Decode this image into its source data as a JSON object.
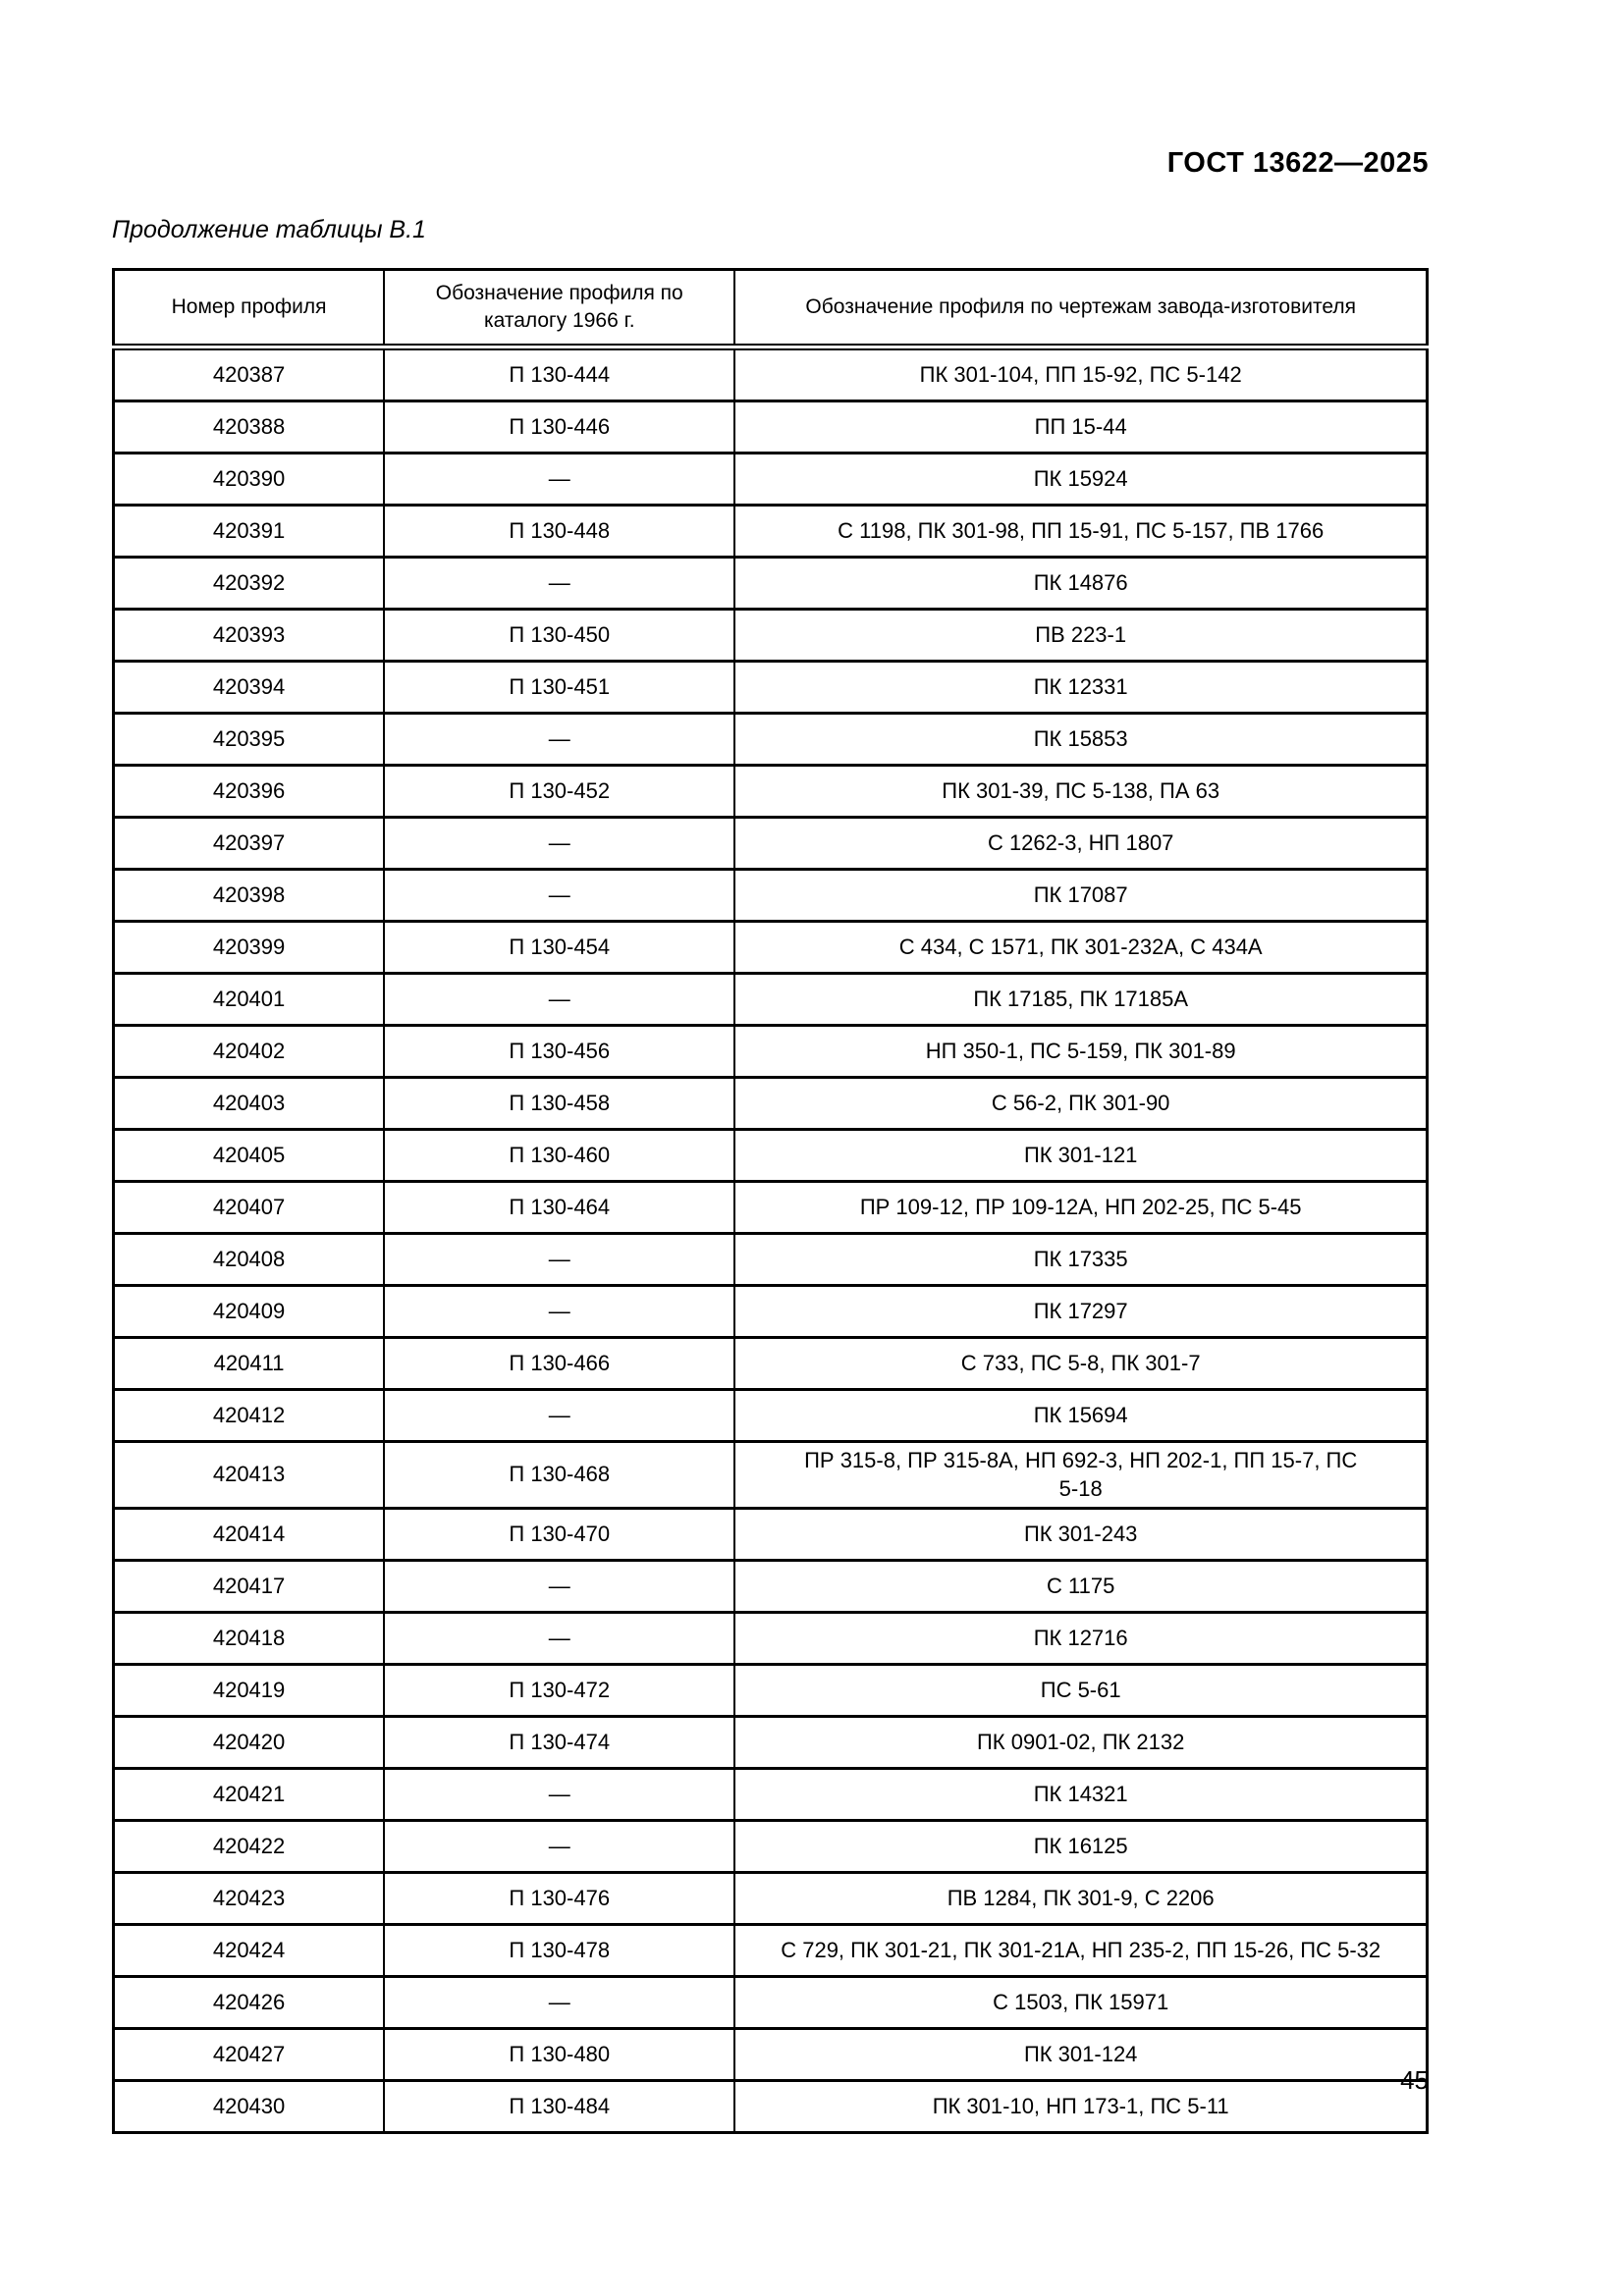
{
  "page": {
    "doc_code": "ГОСТ 13622—2025",
    "table_caption": "Продолжение таблицы В.1",
    "page_number": "45"
  },
  "table": {
    "headers": [
      "Номер профиля",
      "Обозначение профиля по каталогу 1966 г.",
      "Обозначение профиля по чертежам завода-изготовителя"
    ],
    "rows": [
      [
        "420387",
        "П 130-444",
        "ПК 301-104, ПП 15-92, ПС 5-142"
      ],
      [
        "420388",
        "П 130-446",
        "ПП 15-44"
      ],
      [
        "420390",
        "—",
        "ПК 15924"
      ],
      [
        "420391",
        "П 130-448",
        "С 1198, ПК 301-98, ПП 15-91, ПС 5-157, ПВ 1766"
      ],
      [
        "420392",
        "—",
        "ПК 14876"
      ],
      [
        "420393",
        "П 130-450",
        "ПВ 223-1"
      ],
      [
        "420394",
        "П 130-451",
        "ПК 12331"
      ],
      [
        "420395",
        "—",
        "ПК 15853"
      ],
      [
        "420396",
        "П 130-452",
        "ПК 301-39, ПС 5-138, ПА 63"
      ],
      [
        "420397",
        "—",
        "С 1262-3, НП 1807"
      ],
      [
        "420398",
        "—",
        "ПК 17087"
      ],
      [
        "420399",
        "П 130-454",
        "С 434, С 1571, ПК 301-232А, С 434А"
      ],
      [
        "420401",
        "—",
        "ПК 17185, ПК 17185А"
      ],
      [
        "420402",
        "П 130-456",
        "НП 350-1, ПС 5-159, ПК 301-89"
      ],
      [
        "420403",
        "П 130-458",
        "С 56-2, ПК 301-90"
      ],
      [
        "420405",
        "П 130-460",
        "ПК 301-121"
      ],
      [
        "420407",
        "П 130-464",
        "ПР 109-12, ПР 109-12А, НП 202-25, ПС 5-45"
      ],
      [
        "420408",
        "—",
        "ПК 17335"
      ],
      [
        "420409",
        "—",
        "ПК 17297"
      ],
      [
        "420411",
        "П 130-466",
        "С 733, ПС 5-8, ПК 301-7"
      ],
      [
        "420412",
        "—",
        "ПК 15694"
      ],
      [
        "420413",
        "П 130-468",
        "ПР 315-8, ПР 315-8А, НП 692-3, НП 202-1, ПП 15-7, ПС\n5-18"
      ],
      [
        "420414",
        "П 130-470",
        "ПК 301-243"
      ],
      [
        "420417",
        "—",
        "С 1175"
      ],
      [
        "420418",
        "—",
        "ПК 12716"
      ],
      [
        "420419",
        "П 130-472",
        "ПС 5-61"
      ],
      [
        "420420",
        "П 130-474",
        "ПК 0901-02, ПК 2132"
      ],
      [
        "420421",
        "—",
        "ПК 14321"
      ],
      [
        "420422",
        "—",
        "ПК 16125"
      ],
      [
        "420423",
        "П 130-476",
        "ПВ 1284, ПК 301-9, С 2206"
      ],
      [
        "420424",
        "П 130-478",
        "С 729, ПК 301-21, ПК 301-21А, НП 235-2, ПП 15-26, ПС 5-32"
      ],
      [
        "420426",
        "—",
        "С 1503, ПК 15971"
      ],
      [
        "420427",
        "П 130-480",
        "ПК 301-124"
      ],
      [
        "420430",
        "П 130-484",
        "ПК 301-10, НП 173-1, ПС 5-11"
      ]
    ]
  }
}
